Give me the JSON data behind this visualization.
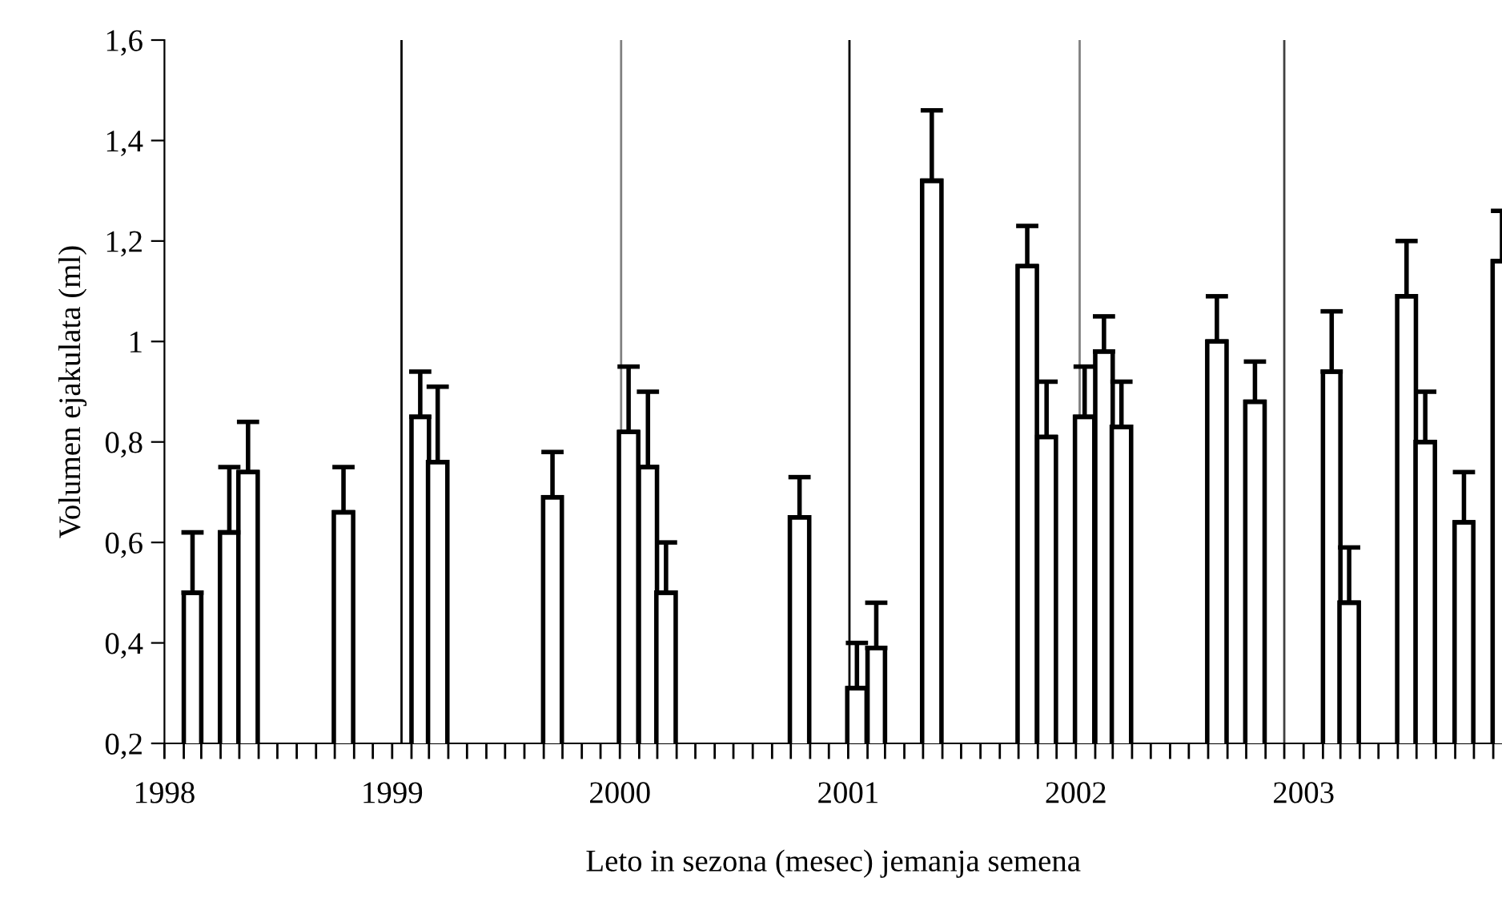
{
  "chart_data": {
    "type": "bar",
    "xlabel": "Leto in sezona (mesec) jemanja semena",
    "ylabel": "Volumen ejakulata (ml)",
    "x": [
      "1998-02-15",
      "1998-04-15",
      "1998-05-15",
      "1998-10-15",
      "1999-02-15",
      "1999-03-15",
      "1999-09-15",
      "2000-01-15",
      "2000-02-15",
      "2000-03-15",
      "2000-10-15",
      "2001-01-15",
      "2001-02-15",
      "2001-05-15",
      "2001-10-15",
      "2001-11-15",
      "2002-01-15",
      "2002-02-15",
      "2002-03-15",
      "2002-08-15",
      "2002-10-15",
      "2003-02-15",
      "2003-03-15",
      "2003-06-15",
      "2003-07-15",
      "2003-09-15",
      "2003-11-15"
    ],
    "values": [
      0.5,
      0.62,
      0.74,
      0.66,
      0.85,
      0.76,
      0.69,
      0.82,
      0.75,
      0.5,
      0.65,
      0.31,
      0.39,
      1.32,
      1.15,
      0.81,
      0.85,
      0.98,
      0.83,
      1.0,
      0.88,
      0.94,
      0.48,
      1.09,
      0.8,
      0.64,
      1.16
    ],
    "errors": [
      [
        0.5,
        0.62
      ],
      [
        0.62,
        0.75
      ],
      [
        0.74,
        0.84
      ],
      [
        0.66,
        0.75
      ],
      [
        0.85,
        0.94
      ],
      [
        0.76,
        0.91
      ],
      [
        0.69,
        0.78
      ],
      [
        0.82,
        0.95
      ],
      [
        0.75,
        0.9
      ],
      [
        0.5,
        0.6
      ],
      [
        0.65,
        0.73
      ],
      [
        0.31,
        0.4
      ],
      [
        0.39,
        0.48
      ],
      [
        1.32,
        1.46
      ],
      [
        1.15,
        1.23
      ],
      [
        0.81,
        0.92
      ],
      [
        0.85,
        0.95
      ],
      [
        0.98,
        1.05
      ],
      [
        0.83,
        0.92
      ],
      [
        1.0,
        1.09
      ],
      [
        0.88,
        0.96
      ],
      [
        0.94,
        1.06
      ],
      [
        0.48,
        0.59
      ],
      [
        1.09,
        1.2
      ],
      [
        0.8,
        0.9
      ],
      [
        0.64,
        0.74
      ],
      [
        1.16,
        1.26
      ]
    ],
    "color": "#ffffff",
    "ylim": [
      0.2,
      1.6
    ],
    "yticks": [
      {
        "value": 0.2,
        "label": "0,2"
      },
      {
        "value": 0.4,
        "label": "0,4"
      },
      {
        "value": 0.6,
        "label": "0,6"
      },
      {
        "value": 0.8,
        "label": "0,8"
      },
      1,
      {
        "value": 1.2,
        "label": "1,2"
      },
      {
        "value": 1.4,
        "label": "1,4"
      },
      {
        "value": 1.6,
        "label": "1,6"
      }
    ],
    "xlim": [
      "1998-01-01",
      "2003-11-15"
    ],
    "xticks": [
      {
        "value": "1998-01-01",
        "label": "1998"
      },
      {
        "value": "1998-02-01",
        "label": null
      },
      {
        "value": "1998-03-01",
        "label": null
      },
      {
        "value": "1998-04-01",
        "label": null
      },
      {
        "value": "1998-05-01",
        "label": null
      },
      {
        "value": "1998-06-01",
        "label": null
      },
      {
        "value": "1998-07-01",
        "label": null
      },
      {
        "value": "1998-08-01",
        "label": null
      },
      {
        "value": "1998-09-01",
        "label": null
      },
      {
        "value": "1998-10-01",
        "label": null
      },
      {
        "value": "1998-11-01",
        "label": null
      },
      {
        "value": "1998-12-01",
        "label": null
      },
      {
        "value": "1999-01-01",
        "label": "1999"
      },
      {
        "value": "1999-02-01",
        "label": null
      },
      {
        "value": "1999-03-01",
        "label": null
      },
      {
        "value": "1999-04-01",
        "label": null
      },
      {
        "value": "1999-05-01",
        "label": null
      },
      {
        "value": "1999-06-01",
        "label": null
      },
      {
        "value": "1999-07-01",
        "label": null
      },
      {
        "value": "1999-08-01",
        "label": null
      },
      {
        "value": "1999-09-01",
        "label": null
      },
      {
        "value": "1999-10-01",
        "label": null
      },
      {
        "value": "1999-11-01",
        "label": null
      },
      {
        "value": "1999-12-01",
        "label": null
      },
      {
        "value": "2000-01-01",
        "label": "2000"
      },
      {
        "value": "2000-02-01",
        "label": null
      },
      {
        "value": "2000-03-01",
        "label": null
      },
      {
        "value": "2000-04-01",
        "label": null
      },
      {
        "value": "2000-05-01",
        "label": null
      },
      {
        "value": "2000-06-01",
        "label": null
      },
      {
        "value": "2000-07-01",
        "label": null
      },
      {
        "value": "2000-08-01",
        "label": null
      },
      {
        "value": "2000-09-01",
        "label": null
      },
      {
        "value": "2000-10-01",
        "label": null
      },
      {
        "value": "2000-11-01",
        "label": null
      },
      {
        "value": "2000-12-01",
        "label": null
      },
      {
        "value": "2001-01-01",
        "label": "2001"
      },
      {
        "value": "2001-02-01",
        "label": null
      },
      {
        "value": "2001-03-01",
        "label": null
      },
      {
        "value": "2001-04-01",
        "label": null
      },
      {
        "value": "2001-05-01",
        "label": null
      },
      {
        "value": "2001-06-01",
        "label": null
      },
      {
        "value": "2001-07-01",
        "label": null
      },
      {
        "value": "2001-08-01",
        "label": null
      },
      {
        "value": "2001-09-01",
        "label": null
      },
      {
        "value": "2001-10-01",
        "label": null
      },
      {
        "value": "2001-11-01",
        "label": null
      },
      {
        "value": "2001-12-01",
        "label": null
      },
      {
        "value": "2002-01-01",
        "label": "2002"
      },
      {
        "value": "2002-02-01",
        "label": null
      },
      {
        "value": "2002-03-01",
        "label": null
      },
      {
        "value": "2002-04-01",
        "label": null
      },
      {
        "value": "2002-05-01",
        "label": null
      },
      {
        "value": "2002-06-01",
        "label": null
      },
      {
        "value": "2002-07-01",
        "label": null
      },
      {
        "value": "2002-08-01",
        "label": null
      },
      {
        "value": "2002-09-01",
        "label": null
      },
      {
        "value": "2002-10-01",
        "label": null
      },
      {
        "value": "2002-11-01",
        "label": null
      },
      {
        "value": "2002-12-01",
        "label": null
      },
      {
        "value": "2003-01-01",
        "label": "2003"
      },
      {
        "value": "2003-02-01",
        "label": null
      },
      {
        "value": "2003-03-01",
        "label": null
      },
      {
        "value": "2003-04-01",
        "label": null
      },
      {
        "value": "2003-05-01",
        "label": null
      },
      {
        "value": "2003-06-01",
        "label": null
      },
      {
        "value": "2003-07-01",
        "label": null
      },
      {
        "value": "2003-08-01",
        "label": null
      },
      {
        "value": "2003-09-01",
        "label": null
      },
      {
        "value": "2003-10-01",
        "label": null
      },
      {
        "value": "2003-11-01",
        "label": null
      }
    ],
    "ref_lines": [
      {
        "axis": "x",
        "value": "1999-01-16",
        "color": "#000000"
      },
      {
        "axis": "x",
        "value": "2000-01-03",
        "color": "#808080"
      },
      {
        "axis": "x",
        "value": "2001-01-03",
        "color": "#000000"
      },
      {
        "axis": "x",
        "value": "2002-01-07",
        "color": "#808080"
      },
      {
        "axis": "x",
        "value": "2002-12-01",
        "color": "#404040"
      }
    ],
    "legend": false
  }
}
